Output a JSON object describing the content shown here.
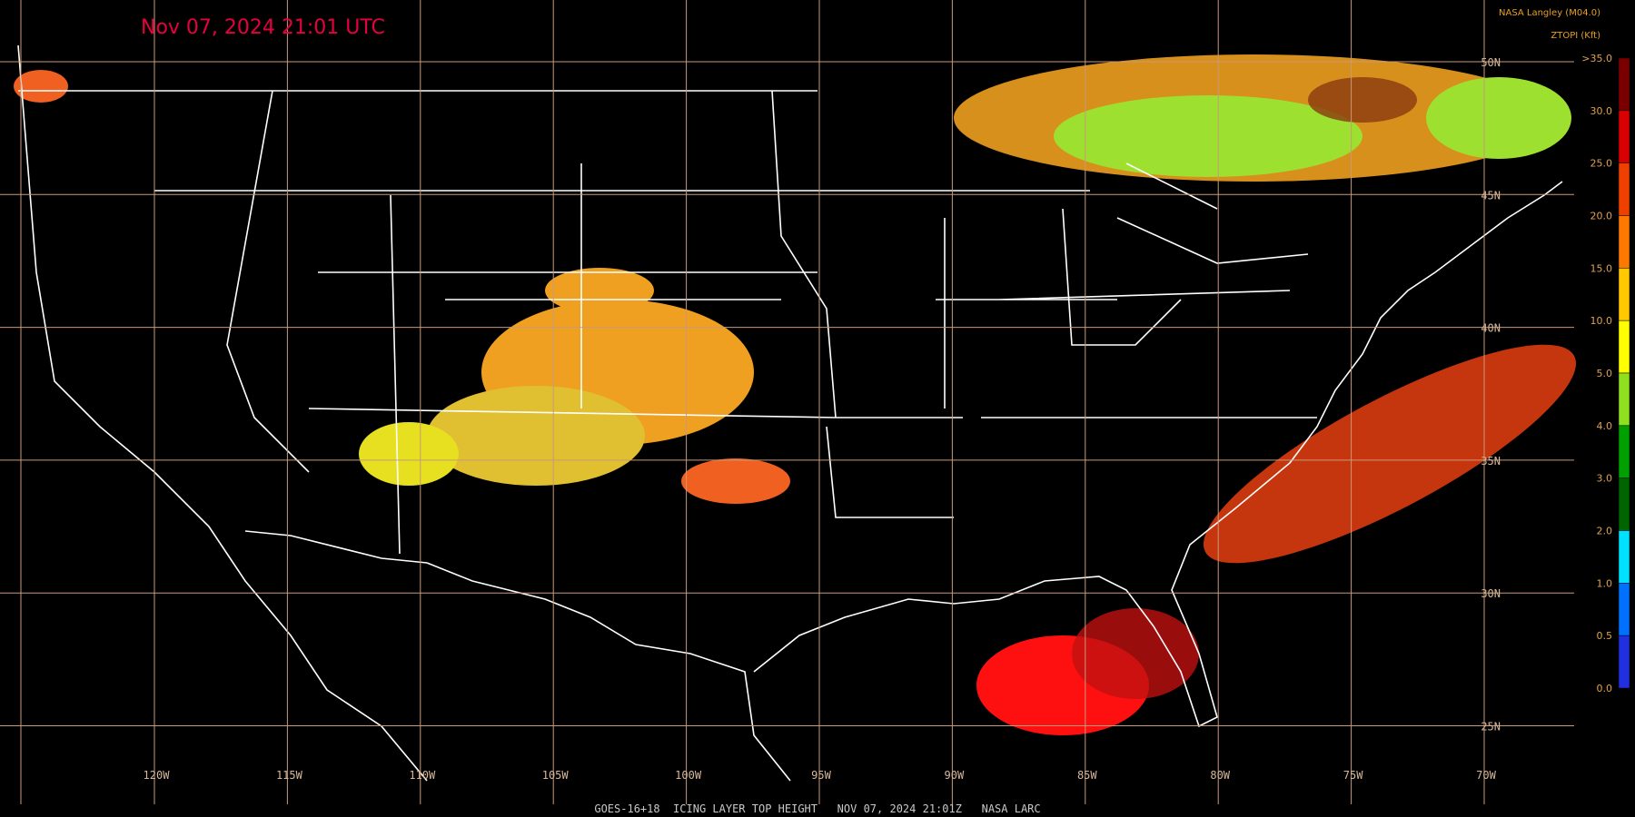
{
  "header": {
    "title": "Nov 07, 2024 21:01 UTC",
    "source": "NASA Langley (M04.0)",
    "unit": "ZTOPI (Kft)"
  },
  "legend": {
    "labels": [
      ">35.0",
      "30.0",
      "25.0",
      "20.0",
      "15.0",
      "10.0",
      "5.0",
      "4.0",
      "3.0",
      "2.0",
      "1.0",
      "0.5",
      "0.0"
    ]
  },
  "grid": {
    "lat_labels": [
      "50N",
      "45N",
      "40N",
      "35N",
      "30N",
      "25N"
    ],
    "lon_labels": [
      "120W",
      "115W",
      "110W",
      "105W",
      "100W",
      "95W",
      "90W",
      "85W",
      "80W",
      "75W",
      "70W"
    ]
  },
  "footer": {
    "caption": "GOES-16+18  ICING LAYER TOP HEIGHT   NOV 07, 2024 21:01Z   NASA LARC"
  }
}
